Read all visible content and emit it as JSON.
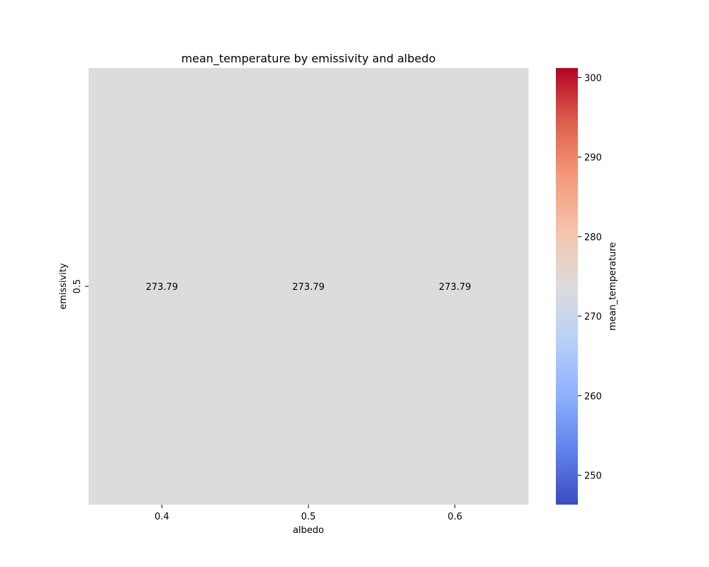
{
  "chart_data": {
    "type": "heatmap",
    "title": "mean_temperature by emissivity and albedo",
    "xlabel": "albedo",
    "ylabel": "emissivity",
    "x_categories": [
      "0.4",
      "0.5",
      "0.6"
    ],
    "y_categories": [
      "0.5"
    ],
    "values": [
      [
        273.79,
        273.79,
        273.79
      ]
    ],
    "value_labels": [
      [
        "273.79",
        "273.79",
        "273.79"
      ]
    ],
    "colormap": "coolwarm",
    "cell_color": "#dcdcdc",
    "colorbar": {
      "label": "mean_temperature",
      "range": [
        246.3,
        301.2
      ],
      "ticks": [
        "250",
        "260",
        "270",
        "280",
        "290",
        "300"
      ],
      "colors": [
        "#3b4cc0",
        "#6282ea",
        "#8db0fe",
        "#b8d0f9",
        "#dcdcdc",
        "#f5c4ac",
        "#f49a7b",
        "#de604d",
        "#b40426"
      ]
    },
    "grid": false
  }
}
